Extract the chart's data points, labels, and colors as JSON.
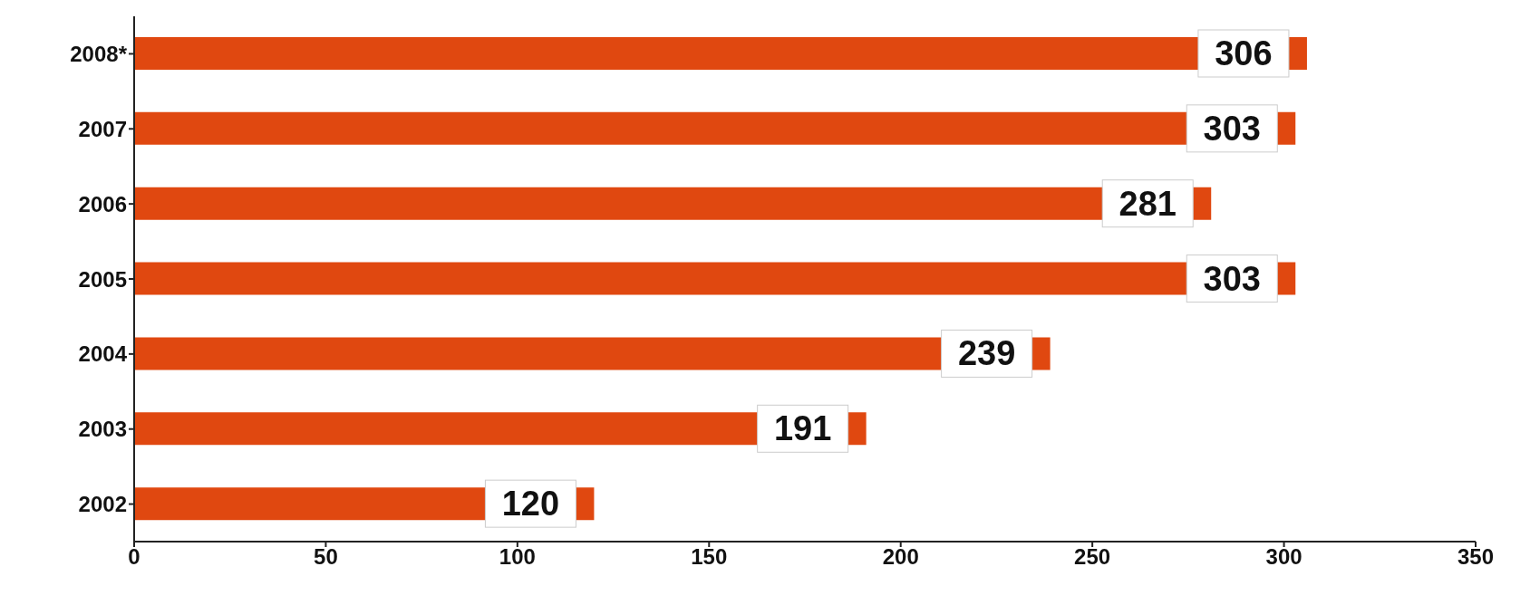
{
  "chart_data": {
    "type": "bar",
    "orientation": "horizontal",
    "categories": [
      "2008*",
      "2007",
      "2006",
      "2005",
      "2004",
      "2003",
      "2002"
    ],
    "values": [
      306,
      303,
      281,
      303,
      239,
      191,
      120
    ],
    "color": "#e04810",
    "xlim": [
      0,
      350
    ],
    "xticks": [
      0,
      50,
      100,
      150,
      200,
      250,
      300,
      350
    ],
    "data_labels": true,
    "grid": false,
    "legend": false
  }
}
